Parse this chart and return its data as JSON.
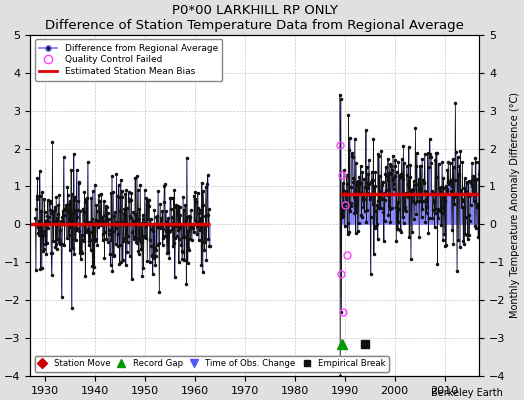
{
  "title": "P0*00 LARKHILL RP ONLY",
  "subtitle": "Difference of Station Temperature Data from Regional Average",
  "ylabel": "Monthly Temperature Anomaly Difference (°C)",
  "xlabel_label": "Berkeley Earth",
  "xlim": [
    1927,
    2017
  ],
  "ylim": [
    -4,
    5
  ],
  "yticks": [
    -4,
    -3,
    -2,
    -1,
    0,
    1,
    2,
    3,
    4,
    5
  ],
  "xticks": [
    1930,
    1940,
    1950,
    1960,
    1970,
    1980,
    1990,
    2000,
    2010
  ],
  "background_color": "#e0e0e0",
  "plot_bg_color": "#ffffff",
  "line_color": "#7777ff",
  "dot_color": "#111111",
  "bias_color": "#dd0000",
  "bias_segment1": {
    "x": [
      1927,
      1963
    ],
    "y": [
      0.0,
      0.0
    ]
  },
  "bias_segment2": {
    "x": [
      1989,
      2017
    ],
    "y": [
      0.8,
      0.8
    ]
  },
  "early_mean": 0.0,
  "early_std": 0.65,
  "late_mean": 0.8,
  "late_std": 0.65,
  "early_start": 1928,
  "early_end": 1963,
  "late_start": 1989,
  "late_end": 2017,
  "n_per_year": 12,
  "record_gap_x": 1989.5,
  "record_gap_y": -3.15,
  "empirical_break_x": 1994,
  "empirical_break_y": -3.15,
  "seed": 17
}
